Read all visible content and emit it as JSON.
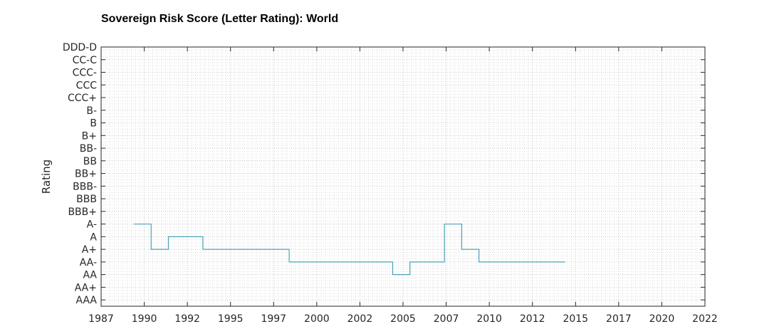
{
  "chart_data": {
    "type": "line",
    "title": "Sovereign Risk Score (Letter Rating): World",
    "xlabel": "",
    "ylabel": "Rating",
    "xlim": [
      1987,
      2022
    ],
    "x_ticks": [
      "1987",
      "1990",
      "1992",
      "1995",
      "1997",
      "2000",
      "2002",
      "2005",
      "2007",
      "2010",
      "2012",
      "2015",
      "2017",
      "2020",
      "2022"
    ],
    "x_tick_values": [
      1987,
      1989.5,
      1992,
      1994.5,
      1997,
      1999.5,
      2002,
      2004.5,
      2007,
      2009.5,
      2012,
      2014.5,
      2017,
      2019.5,
      2022
    ],
    "y_categories": [
      "AAA",
      "AA+",
      "AA",
      "AA-",
      "A+",
      "A",
      "A-",
      "BBB+",
      "BBB",
      "BBB-",
      "BB+",
      "BB",
      "BB-",
      "B+",
      "B",
      "B-",
      "CCC+",
      "CCC",
      "CCC-",
      "CC-C",
      "DDD-D"
    ],
    "grid": true,
    "line_color": "#4aa3b8",
    "series": [
      {
        "name": "",
        "step": "post",
        "x": [
          1988.9,
          1989.9,
          1990.9,
          1992.9,
          1997.9,
          2003.9,
          2004.9,
          2006.9,
          2007.9,
          2008.9,
          2013.9
        ],
        "y": [
          "A-",
          "A+",
          "A",
          "A+",
          "AA-",
          "AA",
          "AA-",
          "A-",
          "A+",
          "AA-",
          "AA-"
        ]
      }
    ]
  }
}
